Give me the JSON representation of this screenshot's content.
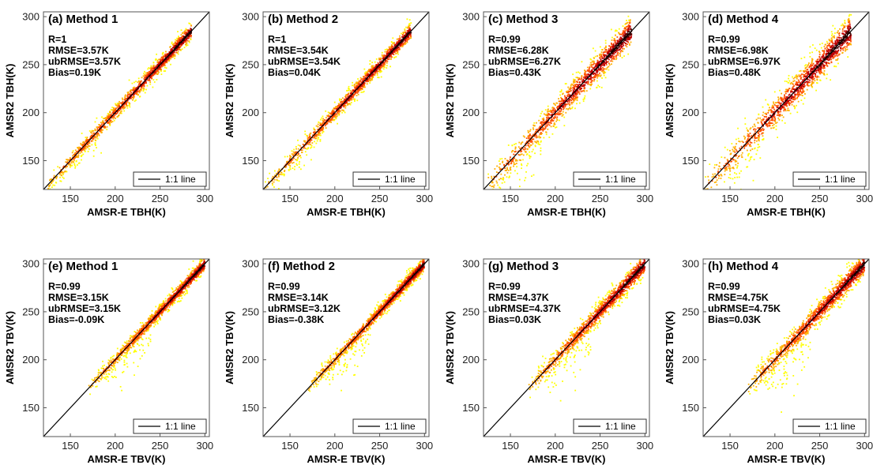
{
  "figure": {
    "panels": [
      {
        "id": "a",
        "title": "(a) Method 1",
        "xlabel": "AMSR-E TBH(K)",
        "ylabel": "AMSR2 TBH(K)",
        "stats": [
          "R=1",
          "RMSE=3.57K",
          "ubRMSE=3.57K",
          "Bias=0.19K"
        ],
        "legend": "1:1 line"
      },
      {
        "id": "b",
        "title": "(b) Method 2",
        "xlabel": "AMSR-E TBH(K)",
        "ylabel": "AMSR2 TBH(K)",
        "stats": [
          "R=1",
          "RMSE=3.54K",
          "ubRMSE=3.54K",
          "Bias=0.04K"
        ],
        "legend": "1:1 line"
      },
      {
        "id": "c",
        "title": "(c) Method 3",
        "xlabel": "AMSR-E TBH(K)",
        "ylabel": "AMSR2 TBH(K)",
        "stats": [
          "R=0.99",
          "RMSE=6.28K",
          "ubRMSE=6.27K",
          "Bias=0.43K"
        ],
        "legend": "1:1 line"
      },
      {
        "id": "d",
        "title": "(d) Method 4",
        "xlabel": "AMSR-E TBH(K)",
        "ylabel": "AMSR2 TBH(K)",
        "stats": [
          "R=0.99",
          "RMSE=6.98K",
          "ubRMSE=6.97K",
          "Bias=0.48K"
        ],
        "legend": "1:1 line"
      },
      {
        "id": "e",
        "title": "(e) Method 1",
        "xlabel": "AMSR-E TBV(K)",
        "ylabel": "AMSR2 TBV(K)",
        "stats": [
          "R=0.99",
          "RMSE=3.15K",
          "ubRMSE=3.15K",
          "Bias=-0.09K"
        ],
        "legend": "1:1 line"
      },
      {
        "id": "f",
        "title": "(f) Method 2",
        "xlabel": "AMSR-E TBV(K)",
        "ylabel": "AMSR2 TBV(K)",
        "stats": [
          "R=0.99",
          "RMSE=3.14K",
          "ubRMSE=3.12K",
          "Bias=-0.38K"
        ],
        "legend": "1:1 line"
      },
      {
        "id": "g",
        "title": "(g) Method 3",
        "xlabel": "AMSR-E TBV(K)",
        "ylabel": "AMSR2 TBV(K)",
        "stats": [
          "R=0.99",
          "RMSE=4.37K",
          "ubRMSE=4.37K",
          "Bias=0.03K"
        ],
        "legend": "1:1 line"
      },
      {
        "id": "h",
        "title": "(h) Method 4",
        "xlabel": "AMSR-E TBV(K)",
        "ylabel": "AMSR2 TBV(K)",
        "stats": [
          "R=0.99",
          "RMSE=4.75K",
          "ubRMSE=4.75K",
          "Bias=0.03K"
        ],
        "legend": "1:1 line"
      }
    ]
  },
  "chart_data": [
    {
      "type": "scatter",
      "title": "(a) Method 1",
      "xlabel": "AMSR-E TBH(K)",
      "ylabel": "AMSR2 TBH(K)",
      "xlim": [
        120,
        305
      ],
      "ylim": [
        120,
        305
      ],
      "xticks": [
        150,
        200,
        250,
        300
      ],
      "yticks": [
        150,
        200,
        250,
        300
      ],
      "x_range": [
        120,
        285
      ],
      "spread": 4,
      "annotations": [
        "R=1",
        "RMSE=3.57K",
        "ubRMSE=3.57K",
        "Bias=0.19K"
      ],
      "series": [
        {
          "name": "1:1 line",
          "x": [
            120,
            305
          ],
          "y": [
            120,
            305
          ]
        }
      ],
      "legend_position": "bottom-right",
      "density_colormap": [
        "#ffff00",
        "#ffb000",
        "#ff5000",
        "#c00000",
        "#400000"
      ]
    },
    {
      "type": "scatter",
      "title": "(b) Method 2",
      "xlabel": "AMSR-E TBH(K)",
      "ylabel": "AMSR2 TBH(K)",
      "xlim": [
        120,
        305
      ],
      "ylim": [
        120,
        305
      ],
      "xticks": [
        150,
        200,
        250,
        300
      ],
      "yticks": [
        150,
        200,
        250,
        300
      ],
      "x_range": [
        120,
        285
      ],
      "spread": 4,
      "annotations": [
        "R=1",
        "RMSE=3.54K",
        "ubRMSE=3.54K",
        "Bias=0.04K"
      ],
      "series": [
        {
          "name": "1:1 line",
          "x": [
            120,
            305
          ],
          "y": [
            120,
            305
          ]
        }
      ],
      "legend_position": "bottom-right",
      "density_colormap": [
        "#ffff00",
        "#ffb000",
        "#ff5000",
        "#c00000",
        "#400000"
      ]
    },
    {
      "type": "scatter",
      "title": "(c) Method 3",
      "xlabel": "AMSR-E TBH(K)",
      "ylabel": "AMSR2 TBH(K)",
      "xlim": [
        120,
        305
      ],
      "ylim": [
        120,
        305
      ],
      "xticks": [
        150,
        200,
        250,
        300
      ],
      "yticks": [
        150,
        200,
        250,
        300
      ],
      "x_range": [
        120,
        285
      ],
      "spread": 7,
      "annotations": [
        "R=0.99",
        "RMSE=6.28K",
        "ubRMSE=6.27K",
        "Bias=0.43K"
      ],
      "series": [
        {
          "name": "1:1 line",
          "x": [
            120,
            305
          ],
          "y": [
            120,
            305
          ]
        }
      ],
      "legend_position": "bottom-right",
      "density_colormap": [
        "#ffff00",
        "#ffb000",
        "#ff5000",
        "#c00000",
        "#400000"
      ]
    },
    {
      "type": "scatter",
      "title": "(d) Method 4",
      "xlabel": "AMSR-E TBH(K)",
      "ylabel": "AMSR2 TBH(K)",
      "xlim": [
        120,
        305
      ],
      "ylim": [
        120,
        305
      ],
      "xticks": [
        150,
        200,
        250,
        300
      ],
      "yticks": [
        150,
        200,
        250,
        300
      ],
      "x_range": [
        120,
        285
      ],
      "spread": 8,
      "annotations": [
        "R=0.99",
        "RMSE=6.98K",
        "ubRMSE=6.97K",
        "Bias=0.48K"
      ],
      "series": [
        {
          "name": "1:1 line",
          "x": [
            120,
            305
          ],
          "y": [
            120,
            305
          ]
        }
      ],
      "legend_position": "bottom-right",
      "density_colormap": [
        "#ffff00",
        "#ffb000",
        "#ff5000",
        "#c00000",
        "#400000"
      ]
    },
    {
      "type": "scatter",
      "title": "(e) Method 1",
      "xlabel": "AMSR-E TBV(K)",
      "ylabel": "AMSR2 TBV(K)",
      "xlim": [
        120,
        305
      ],
      "ylim": [
        120,
        305
      ],
      "xticks": [
        150,
        200,
        250,
        300
      ],
      "yticks": [
        150,
        200,
        250,
        300
      ],
      "x_range": [
        170,
        300
      ],
      "spread": 3.5,
      "annotations": [
        "R=0.99",
        "RMSE=3.15K",
        "ubRMSE=3.15K",
        "Bias=-0.09K"
      ],
      "series": [
        {
          "name": "1:1 line",
          "x": [
            120,
            305
          ],
          "y": [
            120,
            305
          ]
        }
      ],
      "legend_position": "bottom-right",
      "density_colormap": [
        "#ffff00",
        "#ffb000",
        "#ff5000",
        "#c00000",
        "#400000"
      ]
    },
    {
      "type": "scatter",
      "title": "(f) Method 2",
      "xlabel": "AMSR-E TBV(K)",
      "ylabel": "AMSR2 TBV(K)",
      "xlim": [
        120,
        305
      ],
      "ylim": [
        120,
        305
      ],
      "xticks": [
        150,
        200,
        250,
        300
      ],
      "yticks": [
        150,
        200,
        250,
        300
      ],
      "x_range": [
        170,
        300
      ],
      "spread": 3.5,
      "annotations": [
        "R=0.99",
        "RMSE=3.14K",
        "ubRMSE=3.12K",
        "Bias=-0.38K"
      ],
      "series": [
        {
          "name": "1:1 line",
          "x": [
            120,
            305
          ],
          "y": [
            120,
            305
          ]
        }
      ],
      "legend_position": "bottom-right",
      "density_colormap": [
        "#ffff00",
        "#ffb000",
        "#ff5000",
        "#c00000",
        "#400000"
      ]
    },
    {
      "type": "scatter",
      "title": "(g) Method 3",
      "xlabel": "AMSR-E TBV(K)",
      "ylabel": "AMSR2 TBV(K)",
      "xlim": [
        120,
        305
      ],
      "ylim": [
        120,
        305
      ],
      "xticks": [
        150,
        200,
        250,
        300
      ],
      "yticks": [
        150,
        200,
        250,
        300
      ],
      "x_range": [
        170,
        300
      ],
      "spread": 5,
      "annotations": [
        "R=0.99",
        "RMSE=4.37K",
        "ubRMSE=4.37K",
        "Bias=0.03K"
      ],
      "series": [
        {
          "name": "1:1 line",
          "x": [
            120,
            305
          ],
          "y": [
            120,
            305
          ]
        }
      ],
      "legend_position": "bottom-right",
      "density_colormap": [
        "#ffff00",
        "#ffb000",
        "#ff5000",
        "#c00000",
        "#400000"
      ]
    },
    {
      "type": "scatter",
      "title": "(h) Method 4",
      "xlabel": "AMSR-E TBV(K)",
      "ylabel": "AMSR2 TBV(K)",
      "xlim": [
        120,
        305
      ],
      "ylim": [
        120,
        305
      ],
      "xticks": [
        150,
        200,
        250,
        300
      ],
      "yticks": [
        150,
        200,
        250,
        300
      ],
      "x_range": [
        170,
        300
      ],
      "spread": 5.5,
      "annotations": [
        "R=0.99",
        "RMSE=4.75K",
        "ubRMSE=4.75K",
        "Bias=0.03K"
      ],
      "series": [
        {
          "name": "1:1 line",
          "x": [
            120,
            305
          ],
          "y": [
            120,
            305
          ]
        }
      ],
      "legend_position": "bottom-right",
      "density_colormap": [
        "#ffff00",
        "#ffb000",
        "#ff5000",
        "#c00000",
        "#400000"
      ]
    }
  ]
}
